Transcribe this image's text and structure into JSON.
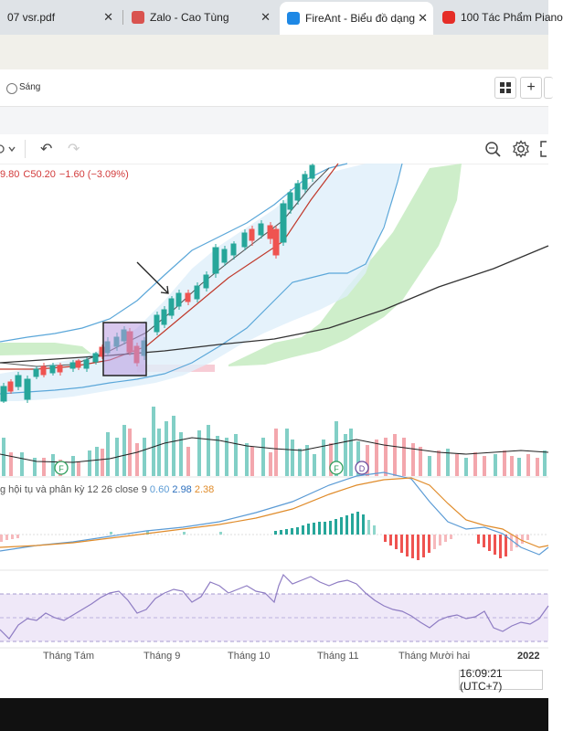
{
  "tabs": [
    {
      "title": "07 vsr.pdf",
      "close": "✕",
      "active": false
    },
    {
      "title": "Zalo - Cao Tùng",
      "close": "✕",
      "active": false
    },
    {
      "title": "FireAnt - Biểu đồ dạng",
      "close": "✕",
      "active": true
    },
    {
      "title": "100 Tác Phẩm Piano",
      "close": "",
      "active": false
    }
  ],
  "toolbar": {
    "theme_label": "Sáng",
    "grid_icon": "grid-icon",
    "add_label": "+"
  },
  "chart_toolbar": {
    "undo": "↶",
    "redo": "↷"
  },
  "legend": {
    "open_fragment": "9.80",
    "close_label": "C50.20",
    "change": "−1.60 (−3.09%)"
  },
  "macd": {
    "title": "g hội tụ và phân kỳ",
    "params": "12 26 close 9",
    "v1": "0.60",
    "v2": "2.98",
    "v3": "2.38"
  },
  "markers": [
    {
      "letter": "F"
    },
    {
      "letter": "F"
    },
    {
      "letter": "D"
    }
  ],
  "x_axis": {
    "labels": [
      "Tháng Tám",
      "Tháng 9",
      "Tháng 10",
      "Tháng 11",
      "Tháng Mười hai",
      "2022"
    ]
  },
  "time_display": "16:09:21 (UTC+7)",
  "colors": {
    "up": "#26a69a",
    "down": "#ef5350",
    "bollinger": "#5ba7d9",
    "ichimoku": "#b7e4b0",
    "ma_long": "#333333",
    "macd_line": "#5b9bd5",
    "signal_line": "#e08c2b",
    "rsi_band": "#efe8f8",
    "rsi_line": "#8e7cc3"
  },
  "chart_data": {
    "type": "candlestick",
    "title": "",
    "xlabel": "",
    "ylabel": "",
    "x": [
      "Tháng Tám",
      "Tháng 9",
      "Tháng 10",
      "Tháng 11",
      "Tháng Mười hai",
      "2022"
    ],
    "notes": "Price candles with Bollinger bands, Ichimoku cloud and long moving average; volume bars with MA; MACD histogram and lines; RSI panel. Values not labeled on chart."
  }
}
